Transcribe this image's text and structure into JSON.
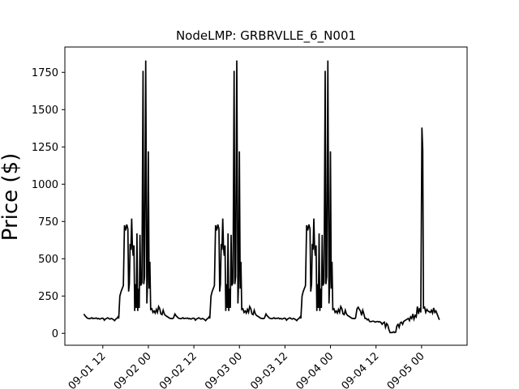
{
  "chart_data": {
    "type": "line",
    "title": "NodeLMP: GRBRVLLE_6_N001",
    "xlabel": "",
    "ylabel": "Price ($)",
    "ylim": [
      -80,
      1920
    ],
    "xlim": [
      "2022-09-01 02:00",
      "2022-09-05 12:00"
    ],
    "yticks": [
      0,
      250,
      500,
      750,
      1000,
      1250,
      1500,
      1750
    ],
    "xticks": [
      {
        "t": "2022-09-01 12:00",
        "label": "09-01 12"
      },
      {
        "t": "2022-09-02 00:00",
        "label": "09-02 00"
      },
      {
        "t": "2022-09-02 12:00",
        "label": "09-02 12"
      },
      {
        "t": "2022-09-03 00:00",
        "label": "09-03 00"
      },
      {
        "t": "2022-09-03 12:00",
        "label": "09-03 12"
      },
      {
        "t": "2022-09-04 00:00",
        "label": "09-04 00"
      },
      {
        "t": "2022-09-04 12:00",
        "label": "09-04 12"
      },
      {
        "t": "2022-09-05 00:00",
        "label": "09-05 00"
      }
    ],
    "grid": false,
    "line_color": "#000000",
    "daily_pattern": [
      [
        0.0,
        130
      ],
      [
        0.3,
        118
      ],
      [
        0.6,
        110
      ],
      [
        0.9,
        102
      ],
      [
        1.2,
        100
      ],
      [
        1.5,
        98
      ],
      [
        1.8,
        100
      ],
      [
        2.1,
        105
      ],
      [
        2.4,
        98
      ],
      [
        2.7,
        101
      ],
      [
        3.0,
        100
      ],
      [
        3.3,
        103
      ],
      [
        3.6,
        97
      ],
      [
        3.9,
        100
      ],
      [
        4.2,
        95
      ],
      [
        4.5,
        99
      ],
      [
        4.8,
        102
      ],
      [
        5.1,
        100
      ],
      [
        5.4,
        88
      ],
      [
        5.7,
        96
      ],
      [
        6.0,
        100
      ],
      [
        6.3,
        104
      ],
      [
        6.6,
        98
      ],
      [
        6.9,
        95
      ],
      [
        7.2,
        100
      ],
      [
        7.5,
        97
      ],
      [
        7.8,
        92
      ],
      [
        8.1,
        85
      ],
      [
        8.4,
        95
      ],
      [
        8.7,
        100
      ],
      [
        9.0,
        110
      ],
      [
        9.2,
        100
      ],
      [
        9.5,
        250
      ],
      [
        9.8,
        280
      ],
      [
        10.1,
        300
      ],
      [
        10.4,
        320
      ],
      [
        10.7,
        725
      ],
      [
        11.0,
        690
      ],
      [
        11.3,
        730
      ],
      [
        11.6,
        700
      ],
      [
        11.8,
        280
      ],
      [
        12.0,
        330
      ],
      [
        12.2,
        600
      ],
      [
        12.4,
        560
      ],
      [
        12.6,
        770
      ],
      [
        12.8,
        580
      ],
      [
        13.0,
        520
      ],
      [
        13.2,
        590
      ],
      [
        13.4,
        150
      ],
      [
        13.6,
        330
      ],
      [
        13.8,
        170
      ],
      [
        14.0,
        670
      ],
      [
        14.2,
        150
      ],
      [
        14.4,
        300
      ],
      [
        14.6,
        170
      ],
      [
        14.8,
        660
      ],
      [
        15.0,
        320
      ],
      [
        15.3,
        340
      ],
      [
        15.6,
        1760
      ],
      [
        15.8,
        330
      ],
      [
        16.0,
        380
      ],
      [
        16.3,
        1830
      ],
      [
        16.6,
        200
      ],
      [
        16.8,
        350
      ],
      [
        17.0,
        1220
      ],
      [
        17.2,
        300
      ],
      [
        17.4,
        480
      ],
      [
        17.6,
        160
      ],
      [
        17.9,
        165
      ],
      [
        18.2,
        140
      ],
      [
        18.5,
        150
      ],
      [
        18.8,
        135
      ],
      [
        19.1,
        160
      ],
      [
        19.4,
        140
      ],
      [
        19.7,
        180
      ],
      [
        20.0,
        165
      ],
      [
        20.3,
        130
      ],
      [
        20.6,
        125
      ],
      [
        20.9,
        155
      ],
      [
        21.2,
        130
      ],
      [
        21.5,
        120
      ],
      [
        21.8,
        115
      ],
      [
        22.1,
        110
      ],
      [
        22.4,
        105
      ],
      [
        22.7,
        100
      ],
      [
        23.0,
        100
      ],
      [
        23.3,
        98
      ],
      [
        23.6,
        102
      ]
    ],
    "last_day_pattern": [
      [
        0.0,
        165
      ],
      [
        0.3,
        175
      ],
      [
        0.6,
        160
      ],
      [
        0.9,
        150
      ],
      [
        1.2,
        120
      ],
      [
        1.5,
        155
      ],
      [
        1.8,
        130
      ],
      [
        2.1,
        100
      ],
      [
        2.4,
        100
      ],
      [
        2.7,
        90
      ],
      [
        3.0,
        95
      ],
      [
        3.3,
        80
      ],
      [
        3.6,
        78
      ],
      [
        3.9,
        80
      ],
      [
        4.2,
        82
      ],
      [
        4.5,
        80
      ],
      [
        4.8,
        75
      ],
      [
        5.1,
        78
      ],
      [
        5.4,
        80
      ],
      [
        5.7,
        76
      ],
      [
        6.0,
        78
      ],
      [
        6.3,
        72
      ],
      [
        6.6,
        60
      ],
      [
        6.9,
        70
      ],
      [
        7.2,
        75
      ],
      [
        7.5,
        40
      ],
      [
        7.8,
        65
      ],
      [
        8.1,
        55
      ],
      [
        8.4,
        25
      ],
      [
        8.7,
        5
      ],
      [
        9.0,
        5
      ],
      [
        9.3,
        5
      ],
      [
        9.6,
        10
      ],
      [
        9.9,
        5
      ],
      [
        10.2,
        8
      ],
      [
        10.5,
        50
      ],
      [
        10.8,
        60
      ],
      [
        11.1,
        40
      ],
      [
        11.4,
        70
      ],
      [
        11.7,
        75
      ],
      [
        12.0,
        60
      ],
      [
        12.3,
        80
      ],
      [
        12.6,
        85
      ],
      [
        12.9,
        90
      ],
      [
        13.2,
        95
      ],
      [
        13.5,
        100
      ],
      [
        13.8,
        85
      ],
      [
        14.1,
        110
      ],
      [
        14.4,
        100
      ],
      [
        14.7,
        130
      ],
      [
        15.0,
        95
      ],
      [
        15.3,
        120
      ],
      [
        15.6,
        110
      ],
      [
        15.9,
        180
      ],
      [
        16.2,
        130
      ],
      [
        16.5,
        170
      ],
      [
        16.8,
        140
      ],
      [
        17.1,
        1380
      ],
      [
        17.3,
        1230
      ],
      [
        17.5,
        170
      ],
      [
        17.8,
        175
      ],
      [
        18.1,
        140
      ],
      [
        18.4,
        160
      ],
      [
        18.7,
        150
      ],
      [
        19.0,
        145
      ],
      [
        19.3,
        140
      ],
      [
        19.6,
        155
      ],
      [
        19.9,
        135
      ],
      [
        20.2,
        170
      ],
      [
        20.5,
        140
      ],
      [
        20.8,
        150
      ],
      [
        21.1,
        130
      ],
      [
        21.4,
        110
      ],
      [
        21.7,
        90
      ]
    ],
    "series_start": "2022-09-01 07:00",
    "repeat_days": 3
  }
}
